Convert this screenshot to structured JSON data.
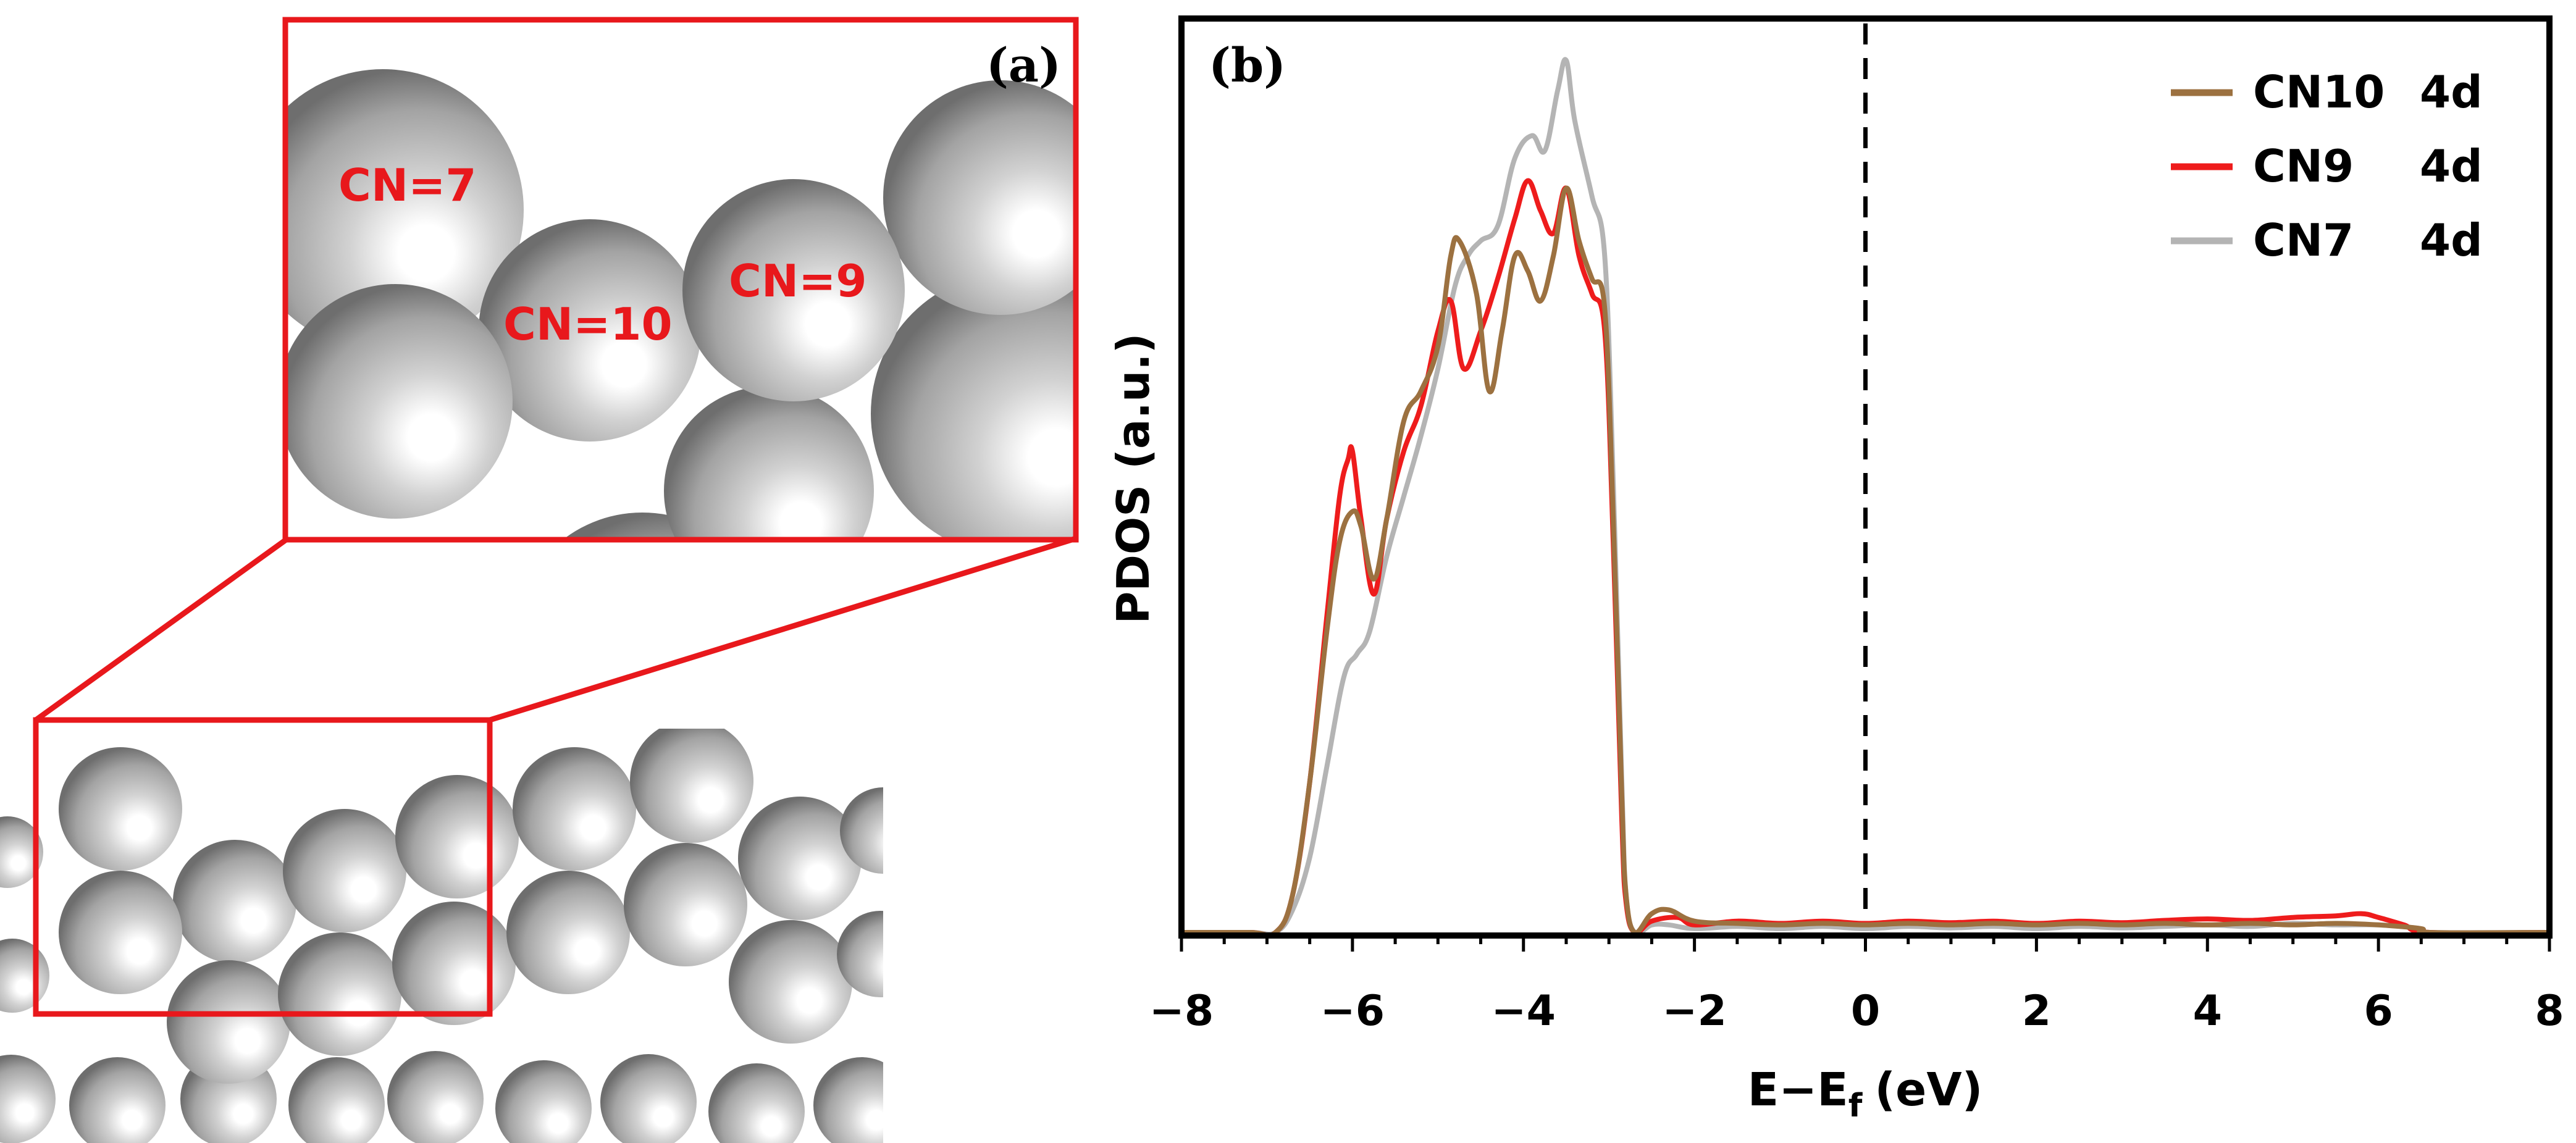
{
  "panel_a": {
    "label": "(a)",
    "site_labels": [
      "CN=7",
      "CN=10",
      "CN=9"
    ],
    "colors": {
      "frame": "#e8181c",
      "site_label": "#e8181c",
      "atom": "#9a9a9a"
    }
  },
  "chart_data": {
    "type": "line",
    "panel_label": "(b)",
    "title": "",
    "xlabel": "E−E",
    "xlabel_sub": "f",
    "xlabel_unit": "(eV)",
    "ylabel": "PDOS (a.u.)",
    "xlim": [
      -8,
      8
    ],
    "ylim": [
      0,
      1.15
    ],
    "xticks": [
      -8,
      -6,
      -4,
      -2,
      0,
      2,
      4,
      6,
      8
    ],
    "xtick_labels": [
      "−8",
      "−6",
      "−4",
      "−2",
      "0",
      "2",
      "4",
      "6",
      "8"
    ],
    "yticks_shown": false,
    "fermi_line_x": 0,
    "legend_position": "top-right",
    "series": [
      {
        "name": "CN7 4d",
        "legend_name": "CN7",
        "legend_orbital": "4d",
        "color": "#b4b4b4",
        "x": [
          -8,
          -7.2,
          -6.9,
          -6.7,
          -6.5,
          -6.3,
          -6.1,
          -5.95,
          -5.8,
          -5.6,
          -5.4,
          -5.2,
          -5.0,
          -4.8,
          -4.65,
          -4.5,
          -4.3,
          -4.1,
          -3.9,
          -3.75,
          -3.6,
          -3.5,
          -3.4,
          -3.2,
          -3.05,
          -2.95,
          -2.85,
          -2.8,
          -2.7,
          -2.5,
          -2.3,
          -2.0,
          -1.5,
          -1.0,
          -0.5,
          0,
          0.5,
          1.0,
          1.5,
          2.0,
          2.5,
          3.0,
          3.5,
          4.0,
          4.5,
          5.0,
          5.5,
          6.0,
          6.5,
          6.6,
          8
        ],
        "values": [
          0,
          0,
          0.0,
          0.03,
          0.1,
          0.22,
          0.34,
          0.37,
          0.4,
          0.5,
          0.58,
          0.66,
          0.75,
          0.86,
          0.9,
          0.92,
          0.94,
          1.03,
          1.06,
          1.04,
          1.12,
          1.16,
          1.08,
          0.98,
          0.9,
          0.6,
          0.2,
          0.05,
          0.0,
          0.01,
          0.01,
          0.005,
          0.008,
          0.005,
          0.008,
          0.005,
          0.008,
          0.006,
          0.008,
          0.005,
          0.008,
          0.006,
          0.008,
          0.01,
          0.008,
          0.012,
          0.01,
          0.01,
          0.005,
          0,
          0
        ]
      },
      {
        "name": "CN9 4d",
        "legend_name": "CN9",
        "legend_orbital": "4d",
        "color": "#ee1c1c",
        "x": [
          -8,
          -7.2,
          -6.9,
          -6.7,
          -6.5,
          -6.3,
          -6.15,
          -6.05,
          -6.0,
          -5.9,
          -5.75,
          -5.6,
          -5.4,
          -5.2,
          -5.0,
          -4.85,
          -4.7,
          -4.5,
          -4.3,
          -4.1,
          -3.95,
          -3.8,
          -3.65,
          -3.5,
          -3.35,
          -3.2,
          -3.05,
          -2.95,
          -2.85,
          -2.8,
          -2.7,
          -2.5,
          -2.2,
          -2.0,
          -1.5,
          -1.0,
          -0.5,
          0,
          0.5,
          1.0,
          1.5,
          2.0,
          2.5,
          3.0,
          3.5,
          4.0,
          4.5,
          5.0,
          5.5,
          5.8,
          6.0,
          6.3,
          6.6,
          8
        ],
        "values": [
          0,
          0,
          0.0,
          0.05,
          0.2,
          0.42,
          0.58,
          0.63,
          0.64,
          0.55,
          0.45,
          0.55,
          0.64,
          0.7,
          0.8,
          0.84,
          0.75,
          0.8,
          0.87,
          0.95,
          1.0,
          0.96,
          0.93,
          0.99,
          0.9,
          0.85,
          0.8,
          0.52,
          0.15,
          0.04,
          0.0,
          0.015,
          0.02,
          0.01,
          0.015,
          0.012,
          0.015,
          0.012,
          0.015,
          0.013,
          0.015,
          0.012,
          0.015,
          0.013,
          0.016,
          0.018,
          0.016,
          0.02,
          0.022,
          0.025,
          0.02,
          0.01,
          0,
          0
        ]
      },
      {
        "name": "CN10 4d",
        "legend_name": "CN10",
        "legend_orbital": "4d",
        "color": "#9c7140",
        "x": [
          -8,
          -7.2,
          -6.9,
          -6.7,
          -6.5,
          -6.3,
          -6.15,
          -6.0,
          -5.9,
          -5.75,
          -5.6,
          -5.4,
          -5.2,
          -5.0,
          -4.85,
          -4.75,
          -4.55,
          -4.4,
          -4.25,
          -4.1,
          -3.95,
          -3.8,
          -3.65,
          -3.5,
          -3.35,
          -3.2,
          -3.05,
          -2.95,
          -2.85,
          -2.8,
          -2.7,
          -2.5,
          -2.3,
          -2.0,
          -1.5,
          -1.0,
          -0.5,
          0,
          0.5,
          1.0,
          1.5,
          2.0,
          2.5,
          3.0,
          3.5,
          4.0,
          4.5,
          5.0,
          5.5,
          6.0,
          6.5,
          6.6,
          8
        ],
        "values": [
          0,
          0,
          0.0,
          0.05,
          0.2,
          0.4,
          0.52,
          0.56,
          0.54,
          0.47,
          0.55,
          0.68,
          0.72,
          0.78,
          0.9,
          0.92,
          0.85,
          0.72,
          0.8,
          0.9,
          0.88,
          0.84,
          0.9,
          0.99,
          0.92,
          0.87,
          0.83,
          0.55,
          0.18,
          0.05,
          0.0,
          0.025,
          0.03,
          0.015,
          0.012,
          0.01,
          0.012,
          0.01,
          0.012,
          0.01,
          0.012,
          0.01,
          0.012,
          0.01,
          0.012,
          0.01,
          0.012,
          0.01,
          0.012,
          0.01,
          0.005,
          0,
          0
        ]
      }
    ],
    "legend_order": [
      "CN10 4d",
      "CN9 4d",
      "CN7 4d"
    ]
  }
}
